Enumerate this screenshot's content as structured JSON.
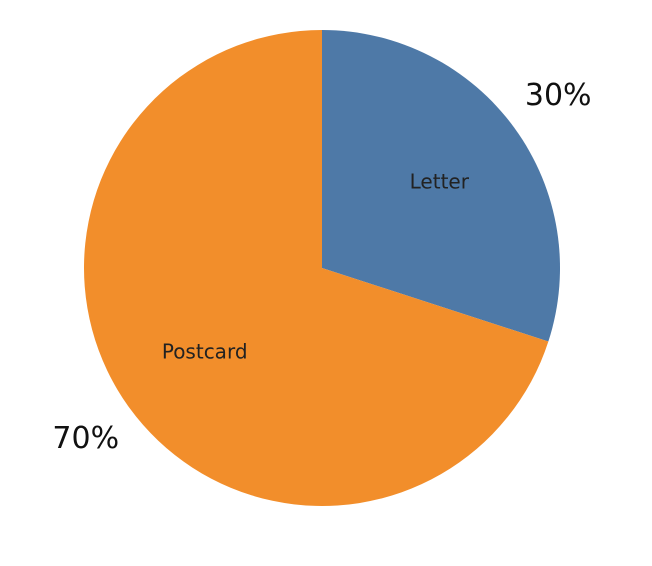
{
  "chart_data": {
    "type": "pie",
    "slices": [
      {
        "name": "Letter",
        "value": 30,
        "label": "30%",
        "color": "#4e79a7"
      },
      {
        "name": "Postcard",
        "value": 70,
        "label": "70%",
        "color": "#f28e2b"
      }
    ],
    "start_angle": "12 o'clock",
    "direction": "clockwise"
  }
}
